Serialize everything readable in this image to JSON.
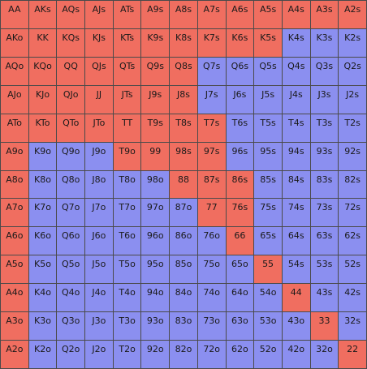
{
  "colors": {
    "raise": "#f06e60",
    "fold": "#8b8ff0",
    "grid_line": "#4a4a4a"
  },
  "rows": [
    {
      "cells": [
        "AA",
        "AKs",
        "AQs",
        "AJs",
        "ATs",
        "A9s",
        "A8s",
        "A7s",
        "A6s",
        "A5s",
        "A4s",
        "A3s",
        "A2s"
      ],
      "raise_count": 13
    },
    {
      "cells": [
        "AKo",
        "KK",
        "KQs",
        "KJs",
        "KTs",
        "K9s",
        "K8s",
        "K7s",
        "K6s",
        "K5s",
        "K4s",
        "K3s",
        "K2s"
      ],
      "raise_count": 10
    },
    {
      "cells": [
        "AQo",
        "KQo",
        "QQ",
        "QJs",
        "QTs",
        "Q9s",
        "Q8s",
        "Q7s",
        "Q6s",
        "Q5s",
        "Q4s",
        "Q3s",
        "Q2s"
      ],
      "raise_count": 7
    },
    {
      "cells": [
        "AJo",
        "KJo",
        "QJo",
        "JJ",
        "JTs",
        "J9s",
        "J8s",
        "J7s",
        "J6s",
        "J5s",
        "J4s",
        "J3s",
        "J2s"
      ],
      "raise_count": 7
    },
    {
      "cells": [
        "ATo",
        "KTo",
        "QTo",
        "JTo",
        "TT",
        "T9s",
        "T8s",
        "T7s",
        "T6s",
        "T5s",
        "T4s",
        "T3s",
        "T2s"
      ],
      "raise_count": 8
    },
    {
      "cells": [
        "A9o",
        "K9o",
        "Q9o",
        "J9o",
        "T9o",
        "99",
        "98s",
        "97s",
        "96s",
        "95s",
        "94s",
        "93s",
        "92s"
      ],
      "raise_count": 1,
      "raise_from": 4,
      "raise_to": 7
    },
    {
      "cells": [
        "A8o",
        "K8o",
        "Q8o",
        "J8o",
        "T8o",
        "98o",
        "88",
        "87s",
        "86s",
        "85s",
        "84s",
        "83s",
        "82s"
      ],
      "raise_count": 1,
      "raise_from": 6,
      "raise_to": 8
    },
    {
      "cells": [
        "A7o",
        "K7o",
        "Q7o",
        "J7o",
        "T7o",
        "97o",
        "87o",
        "77",
        "76s",
        "75s",
        "74s",
        "73s",
        "72s"
      ],
      "raise_count": 1,
      "raise_from": 7,
      "raise_to": 8
    },
    {
      "cells": [
        "A6o",
        "K6o",
        "Q6o",
        "J6o",
        "T6o",
        "96o",
        "86o",
        "76o",
        "66",
        "65s",
        "64s",
        "63s",
        "62s"
      ],
      "raise_count": 1,
      "raise_from": 8,
      "raise_to": 8
    },
    {
      "cells": [
        "A5o",
        "K5o",
        "Q5o",
        "J5o",
        "T5o",
        "95o",
        "85o",
        "75o",
        "65o",
        "55",
        "54s",
        "53s",
        "52s"
      ],
      "raise_count": 1,
      "raise_from": 9,
      "raise_to": 9
    },
    {
      "cells": [
        "A4o",
        "K4o",
        "Q4o",
        "J4o",
        "T4o",
        "94o",
        "84o",
        "74o",
        "64o",
        "54o",
        "44",
        "43s",
        "42s"
      ],
      "raise_count": 1,
      "raise_from": 10,
      "raise_to": 10
    },
    {
      "cells": [
        "A3o",
        "K3o",
        "Q3o",
        "J3o",
        "T3o",
        "93o",
        "83o",
        "73o",
        "63o",
        "53o",
        "43o",
        "33",
        "32s"
      ],
      "raise_count": 1,
      "raise_from": 11,
      "raise_to": 11
    },
    {
      "cells": [
        "A2o",
        "K2o",
        "Q2o",
        "J2o",
        "T2o",
        "92o",
        "82o",
        "72o",
        "62o",
        "52o",
        "42o",
        "32o",
        "22"
      ],
      "raise_count": 1,
      "raise_from": 12,
      "raise_to": 12
    }
  ]
}
